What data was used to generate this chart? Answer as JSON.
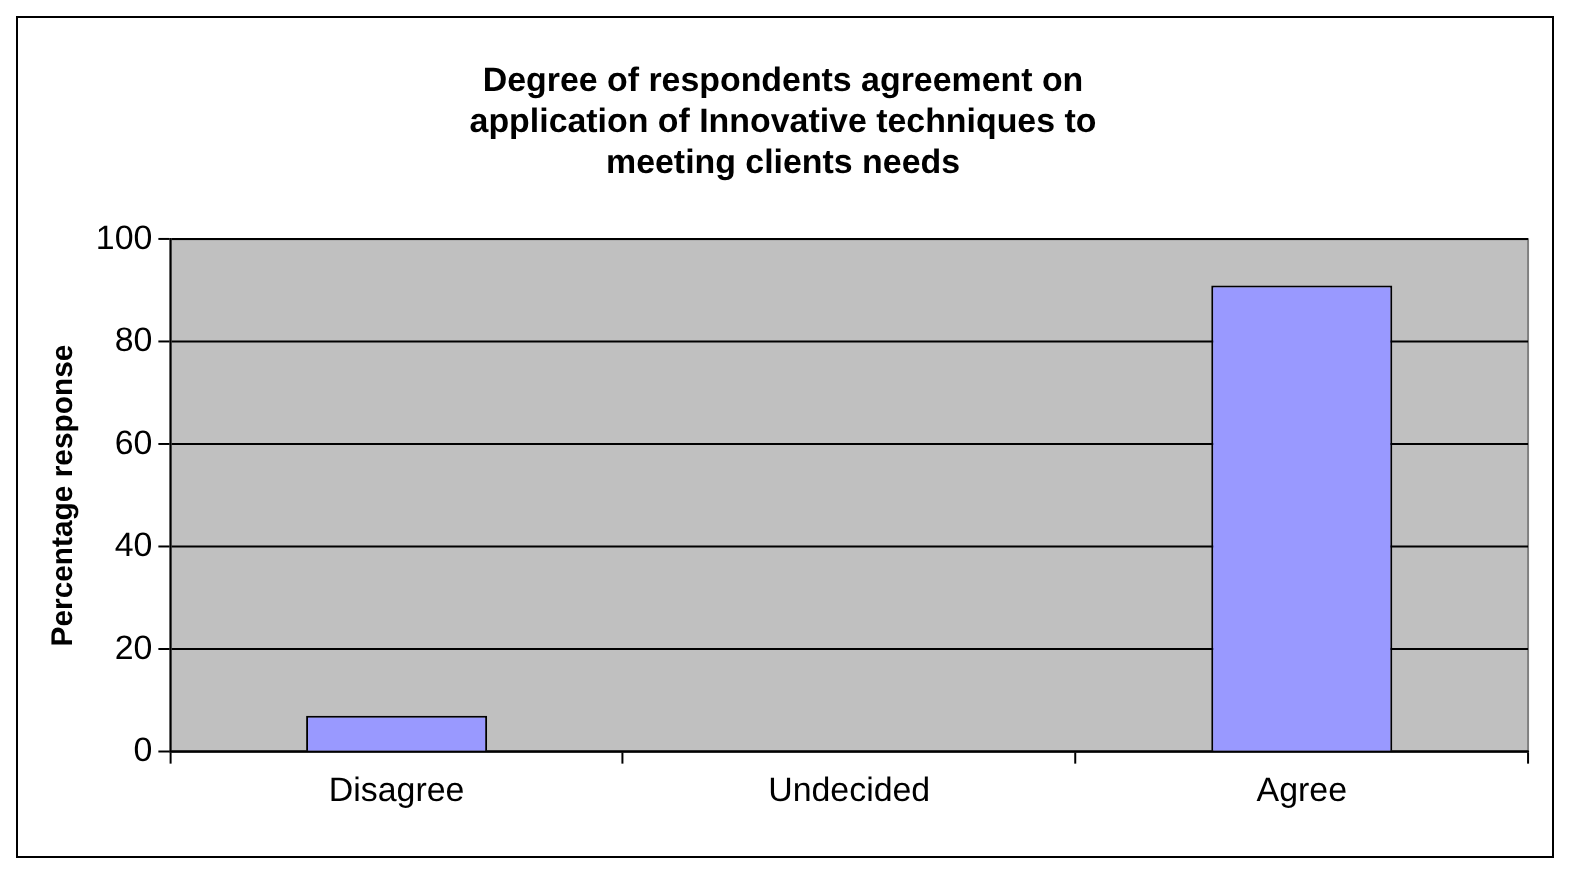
{
  "chart_data": {
    "type": "bar",
    "title": "Degree of respondents agreement on application of Innovative techniques to meeting clients needs",
    "ylabel": "Percentage response",
    "categories": [
      "Disagree",
      "Undecided",
      "Agree"
    ],
    "values": [
      7,
      0,
      91
    ],
    "color": "#9999ff",
    "ylim": [
      0,
      100
    ],
    "yticks": [
      0,
      20,
      40,
      60,
      80,
      100
    ],
    "grid": "y",
    "legend": false
  }
}
